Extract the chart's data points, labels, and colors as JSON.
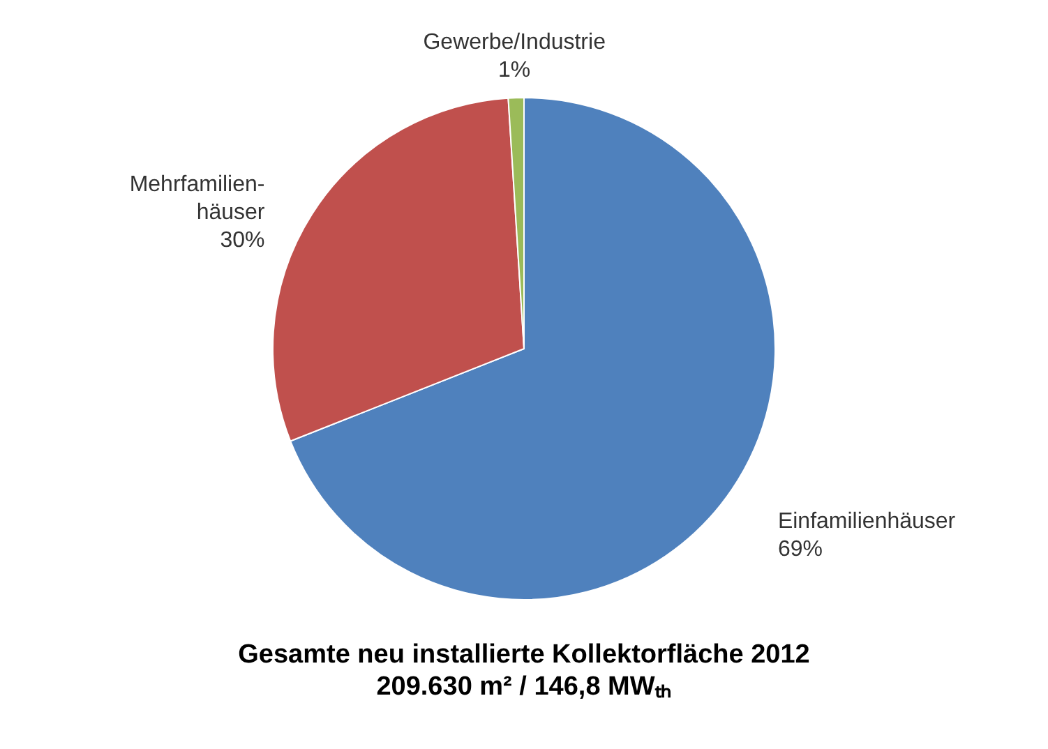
{
  "chart_data": {
    "type": "pie",
    "title": "Gesamte neu installierte Kollektorfläche 2012",
    "subtitle": "209.630 m² / 146,8 MWₜₕ",
    "categories": [
      "Einfamilienhäuser",
      "Mehrfamilien-häuser",
      "Gewerbe/Industrie"
    ],
    "values": [
      69,
      30,
      1
    ],
    "colors": [
      "#4f81bd",
      "#c0504d",
      "#9bbb59"
    ],
    "value_labels": [
      "69%",
      "30%",
      "1%"
    ],
    "legend": false
  }
}
